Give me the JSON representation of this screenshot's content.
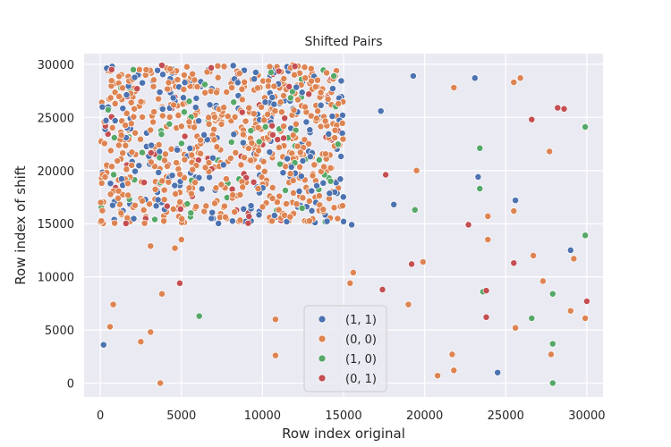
{
  "chart_data": {
    "type": "scatter",
    "title": "Shifted Pairs",
    "xlabel": "Row index original",
    "ylabel": "Row index of shift",
    "xlim": [
      -1000,
      31000
    ],
    "ylim": [
      -1300,
      31000
    ],
    "xticks": [
      0,
      5000,
      10000,
      15000,
      20000,
      25000,
      30000
    ],
    "yticks": [
      0,
      5000,
      10000,
      15000,
      20000,
      25000,
      30000
    ],
    "grid": true,
    "legend_position": "lower-center",
    "dense_cluster": {
      "x_range": [
        0,
        15000
      ],
      "y_range": [
        15000,
        30000
      ],
      "approx_points": 900
    },
    "series": [
      {
        "name": "(1, 1)",
        "color": "#4c72b0",
        "points": [
          [
            200,
            3600
          ],
          [
            19300,
            28900
          ],
          [
            23100,
            28700
          ],
          [
            17300,
            25600
          ],
          [
            23300,
            19400
          ],
          [
            18100,
            16800
          ],
          [
            25600,
            17200
          ],
          [
            15500,
            14900
          ],
          [
            24500,
            1000
          ],
          [
            29000,
            12500
          ],
          [
            15000,
            15200
          ],
          [
            14800,
            19200
          ]
        ]
      },
      {
        "name": "(0, 0)",
        "color": "#dd8452",
        "points": [
          [
            3700,
            0
          ],
          [
            600,
            5300
          ],
          [
            800,
            7400
          ],
          [
            2500,
            3900
          ],
          [
            3100,
            4800
          ],
          [
            3800,
            8400
          ],
          [
            4600,
            12700
          ],
          [
            5000,
            13500
          ],
          [
            3100,
            12900
          ],
          [
            10800,
            2600
          ],
          [
            10800,
            6000
          ],
          [
            15400,
            9400
          ],
          [
            15600,
            10400
          ],
          [
            19500,
            20000
          ],
          [
            19900,
            11400
          ],
          [
            19000,
            7400
          ],
          [
            20800,
            700
          ],
          [
            21800,
            1200
          ],
          [
            21700,
            2700
          ],
          [
            21800,
            27800
          ],
          [
            23900,
            15700
          ],
          [
            23900,
            13500
          ],
          [
            25500,
            28300
          ],
          [
            25900,
            28700
          ],
          [
            25500,
            16200
          ],
          [
            25600,
            5200
          ],
          [
            26700,
            12000
          ],
          [
            27300,
            9600
          ],
          [
            27700,
            21800
          ],
          [
            27800,
            2700
          ],
          [
            29000,
            6800
          ],
          [
            29200,
            11700
          ],
          [
            29900,
            6100
          ]
        ]
      },
      {
        "name": "(1, 0)",
        "color": "#55a868",
        "points": [
          [
            6100,
            6300
          ],
          [
            19400,
            16300
          ],
          [
            23400,
            22100
          ],
          [
            23400,
            18300
          ],
          [
            23600,
            8600
          ],
          [
            26600,
            6100
          ],
          [
            27900,
            8400
          ],
          [
            27900,
            3700
          ],
          [
            27900,
            0
          ],
          [
            29900,
            24100
          ],
          [
            29900,
            13900
          ],
          [
            14400,
            28900
          ],
          [
            14200,
            19000
          ],
          [
            13500,
            21000
          ]
        ]
      },
      {
        "name": "(0, 1)",
        "color": "#c44e52",
        "points": [
          [
            4900,
            9400
          ],
          [
            17400,
            8800
          ],
          [
            17600,
            19600
          ],
          [
            19200,
            11200
          ],
          [
            22700,
            14900
          ],
          [
            23800,
            8700
          ],
          [
            23800,
            6200
          ],
          [
            25500,
            11300
          ],
          [
            26600,
            24800
          ],
          [
            28200,
            25900
          ],
          [
            28600,
            25800
          ],
          [
            30000,
            7700
          ],
          [
            3800,
            29900
          ],
          [
            12000,
            29800
          ],
          [
            700,
            29500
          ]
        ]
      }
    ]
  }
}
